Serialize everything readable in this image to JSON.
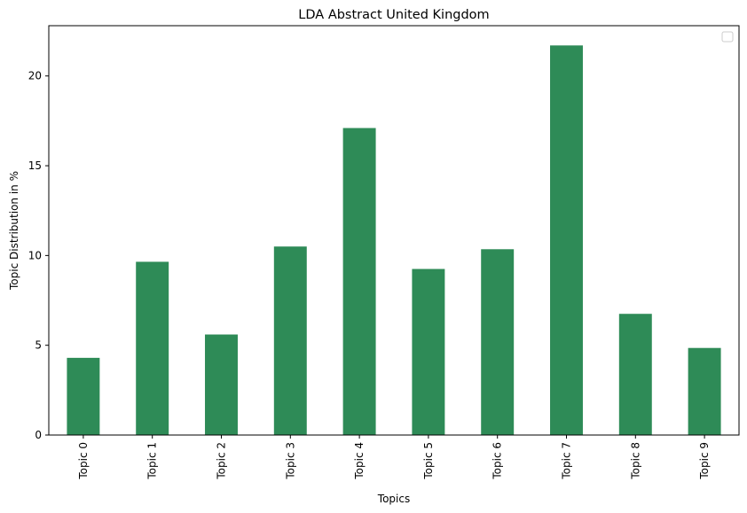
{
  "chart_data": {
    "type": "bar",
    "title": "LDA Abstract United Kingdom",
    "xlabel": "Topics",
    "ylabel": "Topic Distribution in %",
    "categories": [
      "Topic 0",
      "Topic 1",
      "Topic 2",
      "Topic 3",
      "Topic 4",
      "Topic 5",
      "Topic 6",
      "Topic 7",
      "Topic 8",
      "Topic 9"
    ],
    "values": [
      4.3,
      9.65,
      5.6,
      10.5,
      17.1,
      9.25,
      10.35,
      21.7,
      6.75,
      4.85
    ],
    "ylim": [
      0,
      22.8
    ],
    "yticks": [
      0,
      5,
      10,
      15,
      20
    ],
    "bar_color": "#2e8b57",
    "grid": false,
    "legend": {
      "position": "top-right",
      "entries": []
    }
  }
}
